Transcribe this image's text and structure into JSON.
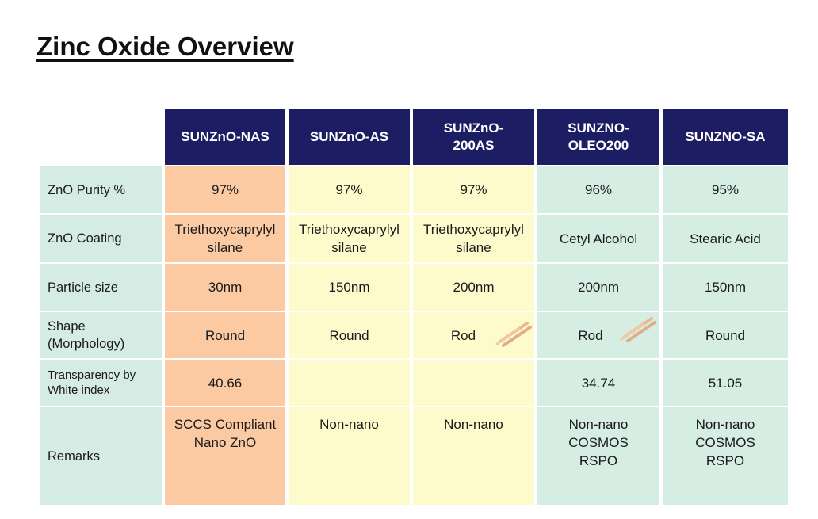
{
  "title": "Zinc Oxide Overview",
  "table": {
    "headers": [
      "SUNZnO-NAS",
      "SUNZnO-AS",
      "SUNZnO-\n200AS",
      "SUNZNO-\nOLEO200",
      "SUNZNO-SA"
    ],
    "rows": [
      {
        "label": "ZnO Purity %",
        "values": [
          "97%",
          "97%",
          "97%",
          "96%",
          "95%"
        ]
      },
      {
        "label": "ZnO Coating",
        "values": [
          "Triethoxycaprylyl\nsilane",
          "Triethoxycaprylyl\nsilane",
          "Triethoxycaprylyl\nsilane",
          "Cetyl Alcohol",
          "Stearic Acid"
        ]
      },
      {
        "label": "Particle size",
        "values": [
          "30nm",
          "150nm",
          "200nm",
          "200nm",
          "150nm"
        ]
      },
      {
        "label": "Shape\n(Morphology)",
        "values": [
          "Round",
          "Round",
          "Rod",
          "Rod",
          "Round"
        ]
      },
      {
        "label": "Transparency  by\nWhite index",
        "values": [
          "40.66",
          "",
          "",
          "34.74",
          "51.05"
        ]
      },
      {
        "label": "Remarks",
        "values": [
          "SCCS Compliant\nNano ZnO",
          "Non-nano",
          "Non-nano",
          "Non-nano\nCOSMOS\nRSPO",
          "Non-nano\nCOSMOS\nRSPO"
        ]
      }
    ]
  },
  "colors": {
    "header_bg": "#1d1d63",
    "label_bg": "#d5ece4",
    "nas_bg": "#fbc9a2",
    "as_bg": "#fdfbcb",
    "oleo_bg": "#d5ede3",
    "rod_color": "#e9b98f"
  },
  "icons": [
    "rod-particles-icon",
    "rod-particles-icon"
  ]
}
